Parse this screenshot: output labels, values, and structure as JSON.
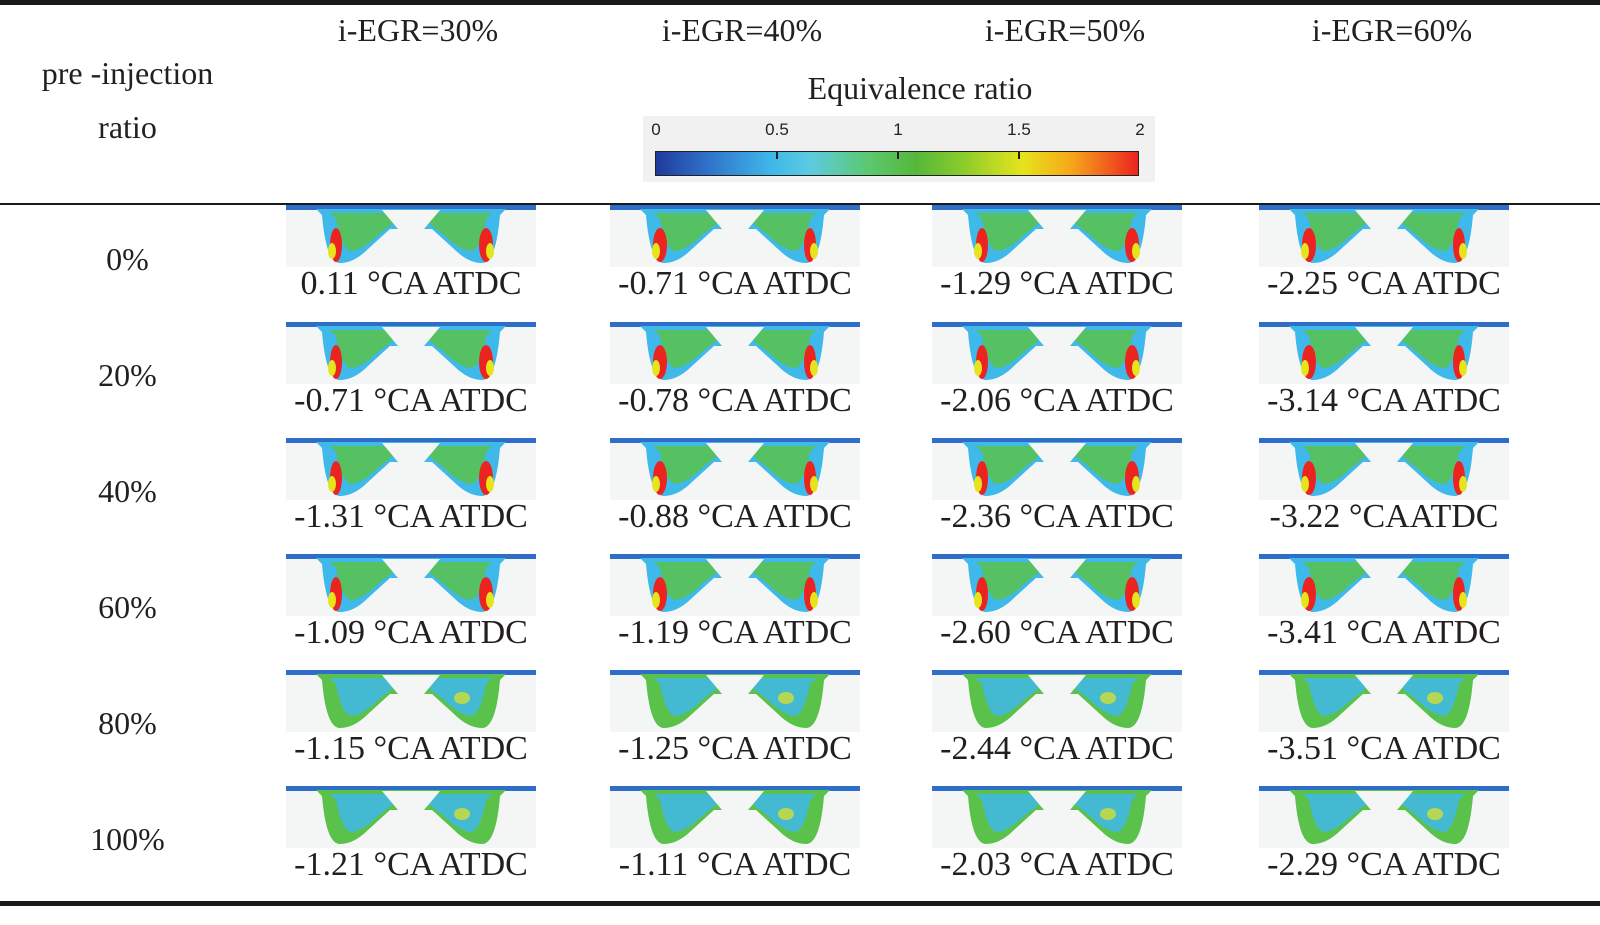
{
  "header": {
    "row_title_line1": "pre -injection",
    "row_title_line2": "ratio",
    "columns": [
      "i-EGR=30%",
      "i-EGR=40%",
      "i-EGR=50%",
      "i-EGR=60%"
    ]
  },
  "colorbar": {
    "title": "Equivalence ratio",
    "ticks": [
      "0",
      "0.5",
      "1",
      "1.5",
      "2"
    ],
    "min": 0,
    "max": 2,
    "colors": [
      "#1f3b9c",
      "#3fb8ea",
      "#55b83a",
      "#e6e41c",
      "#ec2420"
    ]
  },
  "rows": [
    {
      "label": "0%",
      "captions": [
        "0.11 °CA ATDC",
        "-0.71 °CA ATDC",
        "-1.29 °CA ATDC",
        "-2.25 °CA ATDC"
      ]
    },
    {
      "label": "20%",
      "captions": [
        "-0.71 °CA ATDC",
        "-0.78 °CA ATDC",
        "-2.06 °CA ATDC",
        "-3.14 °CA ATDC"
      ]
    },
    {
      "label": "40%",
      "captions": [
        "-1.31 °CA ATDC",
        "-0.88 °CA ATDC",
        "-2.36 °CA ATDC",
        "-3.22 °CAATDC"
      ]
    },
    {
      "label": "60%",
      "captions": [
        "-1.09 °CA ATDC",
        "-1.19 °CA ATDC",
        "-2.60 °CA ATDC",
        "-3.41 °CA ATDC"
      ]
    },
    {
      "label": "80%",
      "captions": [
        "-1.15 °CA ATDC",
        "-1.25 °CA ATDC",
        "-2.44 °CA ATDC",
        "-3.51 °CA ATDC"
      ]
    },
    {
      "label": "100%",
      "captions": [
        "-1.21 °CA ATDC",
        "-1.11 °CA ATDC",
        "-2.03 °CA ATDC",
        "-2.29 °CA ATDC"
      ]
    }
  ]
}
